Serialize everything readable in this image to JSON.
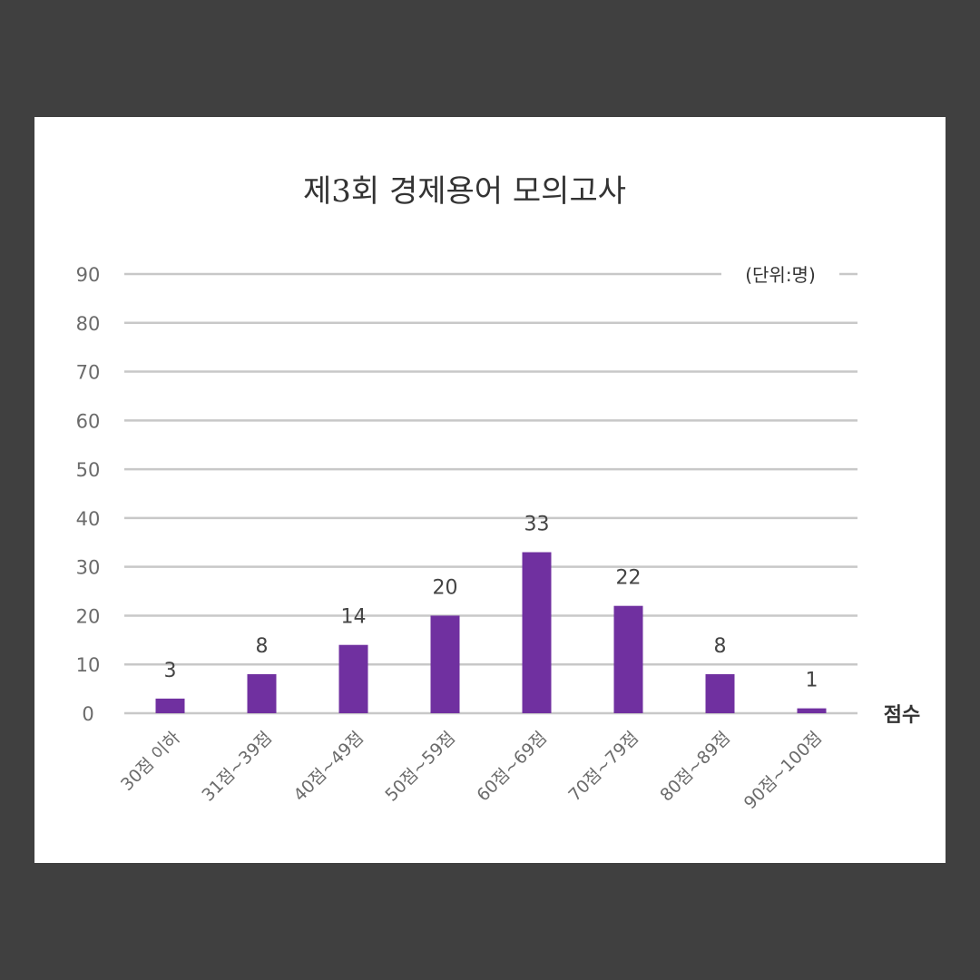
{
  "chart_data": {
    "type": "bar",
    "title": "제3회 경제용어 모의고사",
    "unit": "(단위:명)",
    "xlabel": "점수",
    "ylabel": "",
    "categories": [
      "30점 이하",
      "31점~39점",
      "40점~49점",
      "50점~59점",
      "60점~69점",
      "70점~79점",
      "80점~89점",
      "90점~100점"
    ],
    "values": [
      3,
      8,
      14,
      20,
      33,
      22,
      8,
      1
    ],
    "value_labels": [
      "3",
      "8",
      "14",
      "20",
      "33",
      "22",
      "8",
      "1"
    ],
    "ylim": [
      0,
      90
    ],
    "yticks": [
      0,
      10,
      20,
      30,
      40,
      50,
      60,
      70,
      80,
      90
    ],
    "grid": true,
    "legend": "none",
    "colors": {
      "bar": "#7030a0",
      "grid": "#c8c8c8",
      "background": "#404040",
      "card": "#ffffff"
    }
  }
}
